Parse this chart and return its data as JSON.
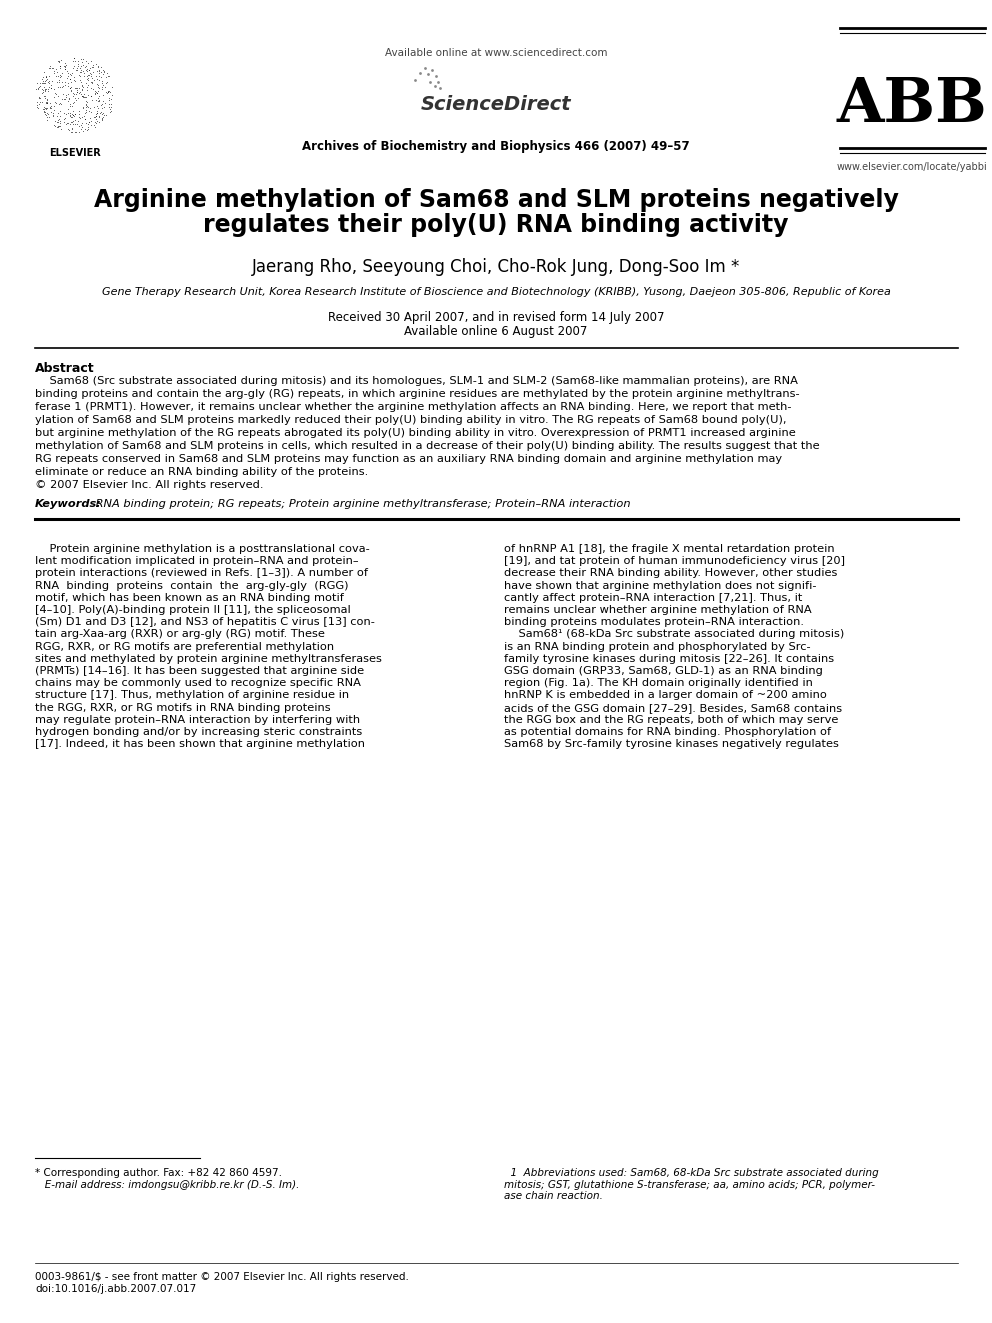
{
  "bg_color": "#ffffff",
  "title_line1": "Arginine methylation of Sam68 and SLM proteins negatively",
  "title_line2": "regulates their poly(U) RNA binding activity",
  "authors": "Jaerang Rho, Seeyoung Choi, Cho-Rok Jung, Dong-Soo Im *",
  "affiliation": "Gene Therapy Research Unit, Korea Research Institute of Bioscience and Biotechnology (KRIBB), Yusong, Daejeon 305-806, Republic of Korea",
  "received": "Received 30 April 2007, and in revised form 14 July 2007",
  "available": "Available online 6 August 2007",
  "header_center_top": "Available online at www.sciencedirect.com",
  "header_center_sd": "ScienceDirect",
  "header_center_journal": "Archives of Biochemistry and Biophysics 466 (2007) 49–57",
  "header_right_abbr": "ABB",
  "header_right_url": "www.elsevier.com/locate/yabbi",
  "abstract_title": "Abstract",
  "keywords_label": "Keywords:",
  "keywords_text": " RNA binding protein; RG repeats; Protein arginine methyltransferase; Protein–RNA interaction",
  "abstract_lines": [
    "    Sam68 (Src substrate associated during mitosis) and its homologues, SLM-1 and SLM-2 (Sam68-like mammalian proteins), are RNA",
    "binding proteins and contain the arg-gly (RG) repeats, in which arginine residues are methylated by the protein arginine methyltrans-",
    "ferase 1 (PRMT1). However, it remains unclear whether the arginine methylation affects an RNA binding. Here, we report that meth-",
    "ylation of Sam68 and SLM proteins markedly reduced their poly(U) binding ability in vitro. The RG repeats of Sam68 bound poly(U),",
    "but arginine methylation of the RG repeats abrogated its poly(U) binding ability in vitro. Overexpression of PRMT1 increased arginine",
    "methylation of Sam68 and SLM proteins in cells, which resulted in a decrease of their poly(U) binding ability. The results suggest that the",
    "RG repeats conserved in Sam68 and SLM proteins may function as an auxiliary RNA binding domain and arginine methylation may",
    "eliminate or reduce an RNA binding ability of the proteins.",
    "© 2007 Elsevier Inc. All rights reserved."
  ],
  "col1_lines": [
    "    Protein arginine methylation is a posttranslational cova-",
    "lent modification implicated in protein–RNA and protein–",
    "protein interactions (reviewed in Refs. [1–3]). A number of",
    "RNA  binding  proteins  contain  the  arg-gly-gly  (RGG)",
    "motif, which has been known as an RNA binding motif",
    "[4–10]. Poly(A)-binding protein II [11], the spliceosomal",
    "(Sm) D1 and D3 [12], and NS3 of hepatitis C virus [13] con-",
    "tain arg-Xaa-arg (RXR) or arg-gly (RG) motif. These",
    "RGG, RXR, or RG motifs are preferential methylation",
    "sites and methylated by protein arginine methyltransferases",
    "(PRMTs) [14–16]. It has been suggested that arginine side",
    "chains may be commonly used to recognize specific RNA",
    "structure [17]. Thus, methylation of arginine residue in",
    "the RGG, RXR, or RG motifs in RNA binding proteins",
    "may regulate protein–RNA interaction by interfering with",
    "hydrogen bonding and/or by increasing steric constraints",
    "[17]. Indeed, it has been shown that arginine methylation"
  ],
  "col2_lines": [
    "of hnRNP A1 [18], the fragile X mental retardation protein",
    "[19], and tat protein of human immunodeficiency virus [20]",
    "decrease their RNA binding ability. However, other studies",
    "have shown that arginine methylation does not signifi-",
    "cantly affect protein–RNA interaction [7,21]. Thus, it",
    "remains unclear whether arginine methylation of RNA",
    "binding proteins modulates protein–RNA interaction.",
    "    Sam68¹ (68-kDa Src substrate associated during mitosis)",
    "is an RNA binding protein and phosphorylated by Src-",
    "family tyrosine kinases during mitosis [22–26]. It contains",
    "GSG domain (GRP33, Sam68, GLD-1) as an RNA binding",
    "region (Fig. 1a). The KH domain originally identified in",
    "hnRNP K is embedded in a larger domain of ~200 amino",
    "acids of the GSG domain [27–29]. Besides, Sam68 contains",
    "the RGG box and the RG repeats, both of which may serve",
    "as potential domains for RNA binding. Phosphorylation of",
    "Sam68 by Src-family tyrosine kinases negatively regulates"
  ],
  "fn_star_line1": "* Corresponding author. Fax: +82 42 860 4597.",
  "fn_star_line2": "   E-mail address: imdongsu@kribb.re.kr (D.-S. Im).",
  "fn1_line1": "  1  Abbreviations used: Sam68, 68-kDa Src substrate associated during",
  "fn1_line2": "mitosis; GST, glutathione S-transferase; aa, amino acids; PCR, polymer-",
  "fn1_line3": "ase chain reaction.",
  "footer_line1": "0003-9861/$ - see front matter © 2007 Elsevier Inc. All rights reserved.",
  "footer_line2": "doi:10.1016/j.abb.2007.07.017"
}
